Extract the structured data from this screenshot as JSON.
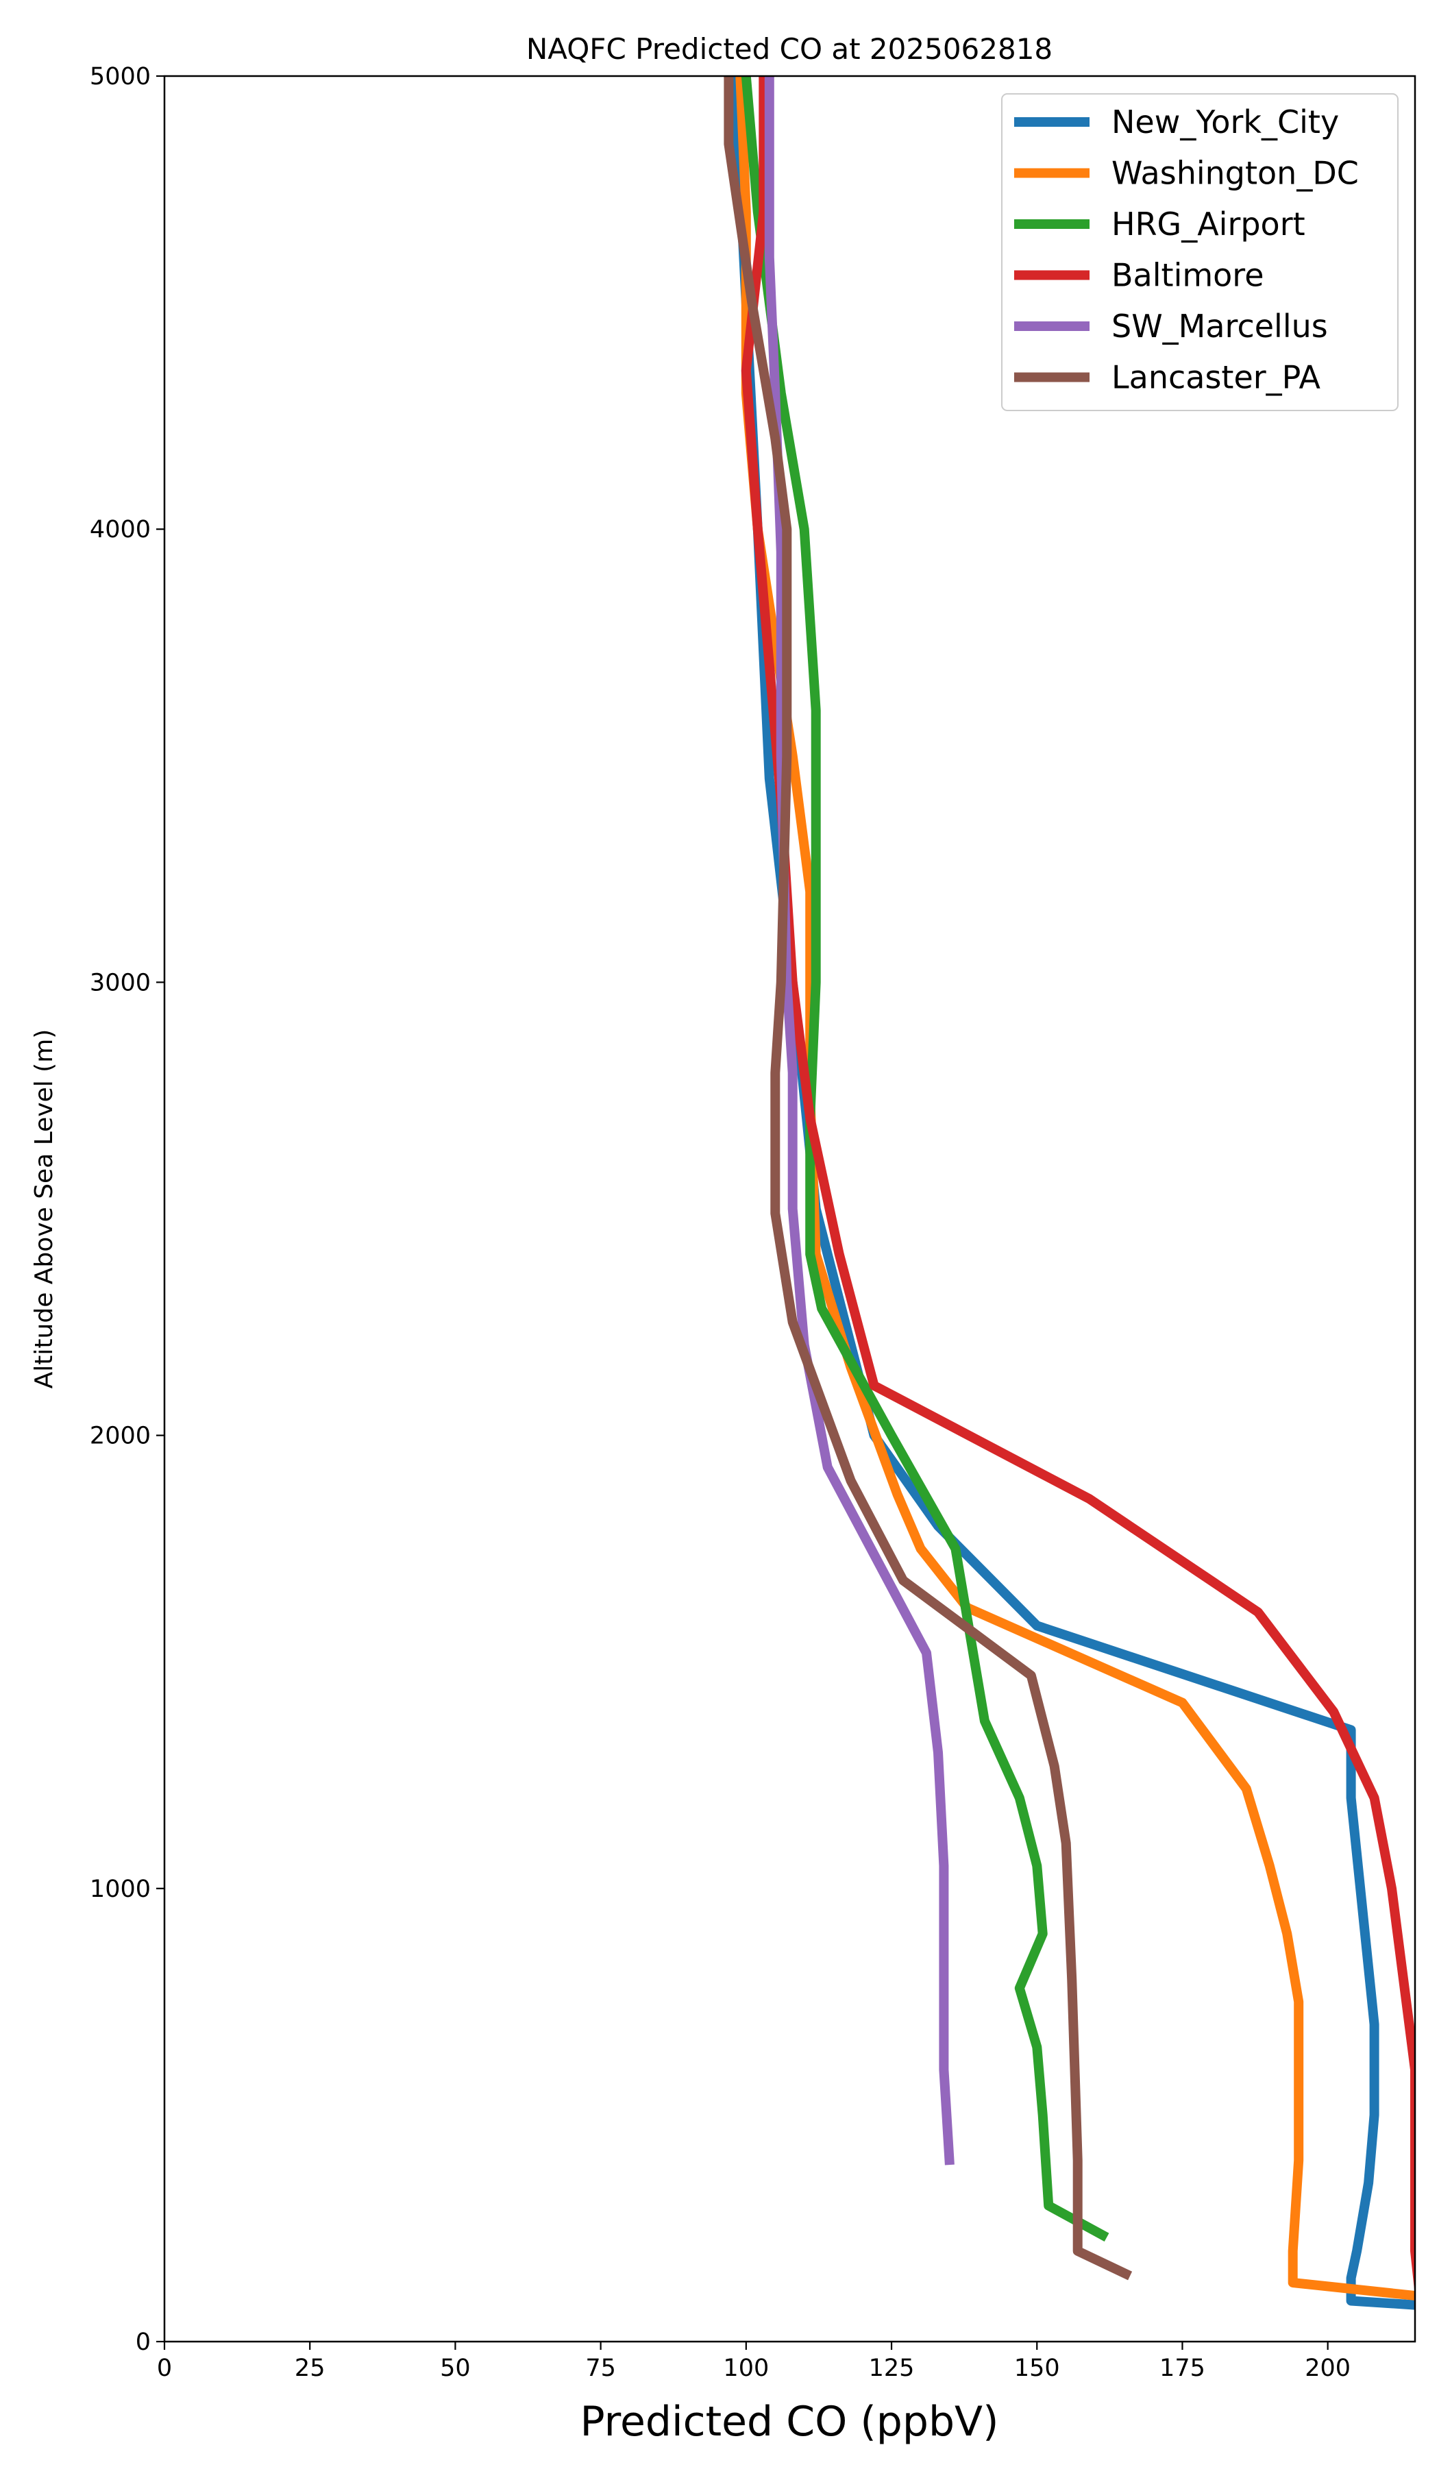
{
  "chart_data": {
    "type": "line",
    "title": "NAQFC Predicted CO at 2025062818",
    "xlabel": "Predicted CO (ppbV)",
    "ylabel": "Altitude Above Sea Level (m)",
    "xlim": [
      0,
      215
    ],
    "ylim": [
      0,
      5000
    ],
    "xticks": [
      0,
      25,
      50,
      75,
      100,
      125,
      150,
      175,
      200
    ],
    "yticks": [
      0,
      1000,
      2000,
      3000,
      4000,
      5000
    ],
    "grid": false,
    "legend_position": "top-right",
    "series": [
      {
        "name": "New_York_City",
        "color": "#1f77b4",
        "points": [
          [
            216,
            80
          ],
          [
            204,
            90
          ],
          [
            204,
            140
          ],
          [
            205,
            200
          ],
          [
            207,
            350
          ],
          [
            208,
            500
          ],
          [
            208,
            700
          ],
          [
            206,
            950
          ],
          [
            204,
            1200
          ],
          [
            204,
            1350
          ],
          [
            150,
            1580
          ],
          [
            133,
            1800
          ],
          [
            122,
            2000
          ],
          [
            112,
            2500
          ],
          [
            108,
            3000
          ],
          [
            104,
            3450
          ],
          [
            102,
            4000
          ],
          [
            100,
            4500
          ],
          [
            98,
            5000
          ]
        ]
      },
      {
        "name": "Washington_DC",
        "color": "#ff7f0e",
        "points": [
          [
            216,
            100
          ],
          [
            194,
            130
          ],
          [
            194,
            200
          ],
          [
            195,
            400
          ],
          [
            195,
            550
          ],
          [
            195,
            750
          ],
          [
            193,
            900
          ],
          [
            190,
            1050
          ],
          [
            186,
            1220
          ],
          [
            175,
            1410
          ],
          [
            138,
            1620
          ],
          [
            130,
            1750
          ],
          [
            126,
            1870
          ],
          [
            118,
            2150
          ],
          [
            112,
            2400
          ],
          [
            111,
            2750
          ],
          [
            111,
            3200
          ],
          [
            108,
            3500
          ],
          [
            102,
            4000
          ],
          [
            100,
            4300
          ],
          [
            100,
            4700
          ],
          [
            99,
            5000
          ]
        ]
      },
      {
        "name": "HRG_Airport",
        "color": "#2ca02c",
        "points": [
          [
            162,
            230
          ],
          [
            152,
            300
          ],
          [
            151,
            500
          ],
          [
            150,
            650
          ],
          [
            147,
            780
          ],
          [
            151,
            900
          ],
          [
            150,
            1050
          ],
          [
            147,
            1200
          ],
          [
            141,
            1370
          ],
          [
            136,
            1750
          ],
          [
            125,
            2000
          ],
          [
            113,
            2280
          ],
          [
            111,
            2400
          ],
          [
            111,
            2700
          ],
          [
            112,
            3000
          ],
          [
            112,
            3600
          ],
          [
            110,
            4000
          ],
          [
            106,
            4300
          ],
          [
            102,
            4700
          ],
          [
            100,
            5000
          ]
        ]
      },
      {
        "name": "Baltimore",
        "color": "#d62728",
        "points": [
          [
            216,
            80
          ],
          [
            215,
            200
          ],
          [
            215,
            600
          ],
          [
            213,
            800
          ],
          [
            211,
            1000
          ],
          [
            208,
            1200
          ],
          [
            201,
            1390
          ],
          [
            188,
            1610
          ],
          [
            159,
            1860
          ],
          [
            122,
            2110
          ],
          [
            116,
            2400
          ],
          [
            111,
            2700
          ],
          [
            108,
            3000
          ],
          [
            106,
            3400
          ],
          [
            104,
            3700
          ],
          [
            102,
            4000
          ],
          [
            100,
            4350
          ],
          [
            103,
            4700
          ],
          [
            103,
            5000
          ]
        ]
      },
      {
        "name": "SW_Marcellus",
        "color": "#9467bd",
        "points": [
          [
            135,
            390
          ],
          [
            134,
            600
          ],
          [
            134,
            800
          ],
          [
            134,
            1050
          ],
          [
            133,
            1300
          ],
          [
            131,
            1520
          ],
          [
            114,
            1930
          ],
          [
            110,
            2200
          ],
          [
            108,
            2500
          ],
          [
            108,
            2800
          ],
          [
            107,
            3000
          ],
          [
            106,
            3500
          ],
          [
            106,
            3950
          ],
          [
            105,
            4300
          ],
          [
            104,
            4600
          ],
          [
            104,
            5000
          ]
        ]
      },
      {
        "name": "Lancaster_PA",
        "color": "#8c564b",
        "points": [
          [
            166,
            145
          ],
          [
            157,
            200
          ],
          [
            157,
            400
          ],
          [
            156,
            800
          ],
          [
            155,
            1100
          ],
          [
            153,
            1270
          ],
          [
            149,
            1470
          ],
          [
            127,
            1680
          ],
          [
            118,
            1900
          ],
          [
            108,
            2250
          ],
          [
            105,
            2490
          ],
          [
            105,
            2800
          ],
          [
            106,
            3000
          ],
          [
            107,
            3500
          ],
          [
            107,
            4000
          ],
          [
            105,
            4200
          ],
          [
            101,
            4500
          ],
          [
            97,
            4850
          ],
          [
            97,
            5000
          ]
        ]
      }
    ]
  }
}
